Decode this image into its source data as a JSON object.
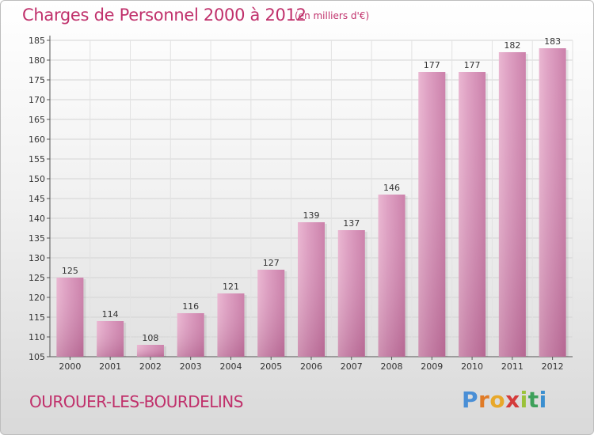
{
  "header": {
    "title": "Charges de Personnel 2000 à 2012",
    "unit": "(en milliers d'€)"
  },
  "footer": {
    "commune": "OUROUER-LES-BOURDELINS",
    "logo": [
      "P",
      "r",
      "o",
      "x",
      "i",
      "t",
      "i"
    ]
  },
  "colors": {
    "bar": "#d88fb6",
    "accent": "#c0306b"
  },
  "chart_data": {
    "type": "bar",
    "title": "Charges de Personnel 2000 à 2012",
    "subtitle": "(en milliers d'€)",
    "xlabel": "",
    "ylabel": "",
    "categories": [
      "2000",
      "2001",
      "2002",
      "2003",
      "2004",
      "2005",
      "2006",
      "2007",
      "2008",
      "2009",
      "2010",
      "2011",
      "2012"
    ],
    "values": [
      125,
      114,
      108,
      116,
      121,
      127,
      139,
      137,
      146,
      177,
      177,
      182,
      183
    ],
    "ylim": [
      105,
      185
    ],
    "yticks": [
      105,
      110,
      115,
      120,
      125,
      130,
      135,
      140,
      145,
      150,
      155,
      160,
      165,
      170,
      175,
      180,
      185
    ],
    "grid": true
  }
}
